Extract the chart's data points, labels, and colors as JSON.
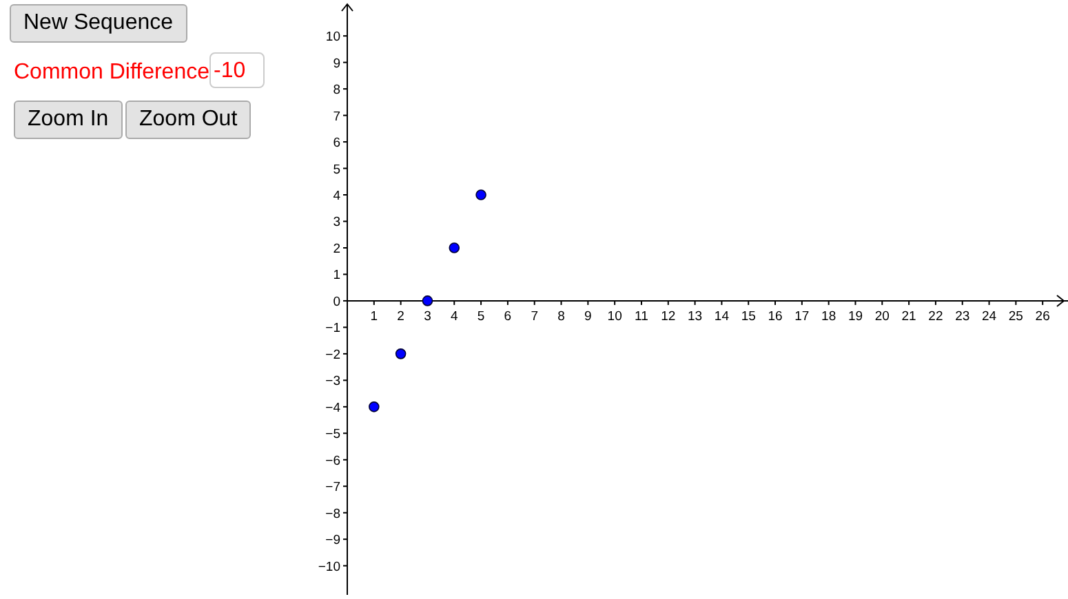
{
  "chart_data": {
    "type": "scatter",
    "x": [
      1,
      2,
      3,
      4,
      5
    ],
    "series": [
      {
        "color": "#0000ff",
        "values": [
          -4,
          -2,
          0,
          2,
          4
        ]
      }
    ],
    "marker": "circle",
    "grid": false,
    "xlim": [
      0,
      27
    ],
    "xticks": [
      1,
      2,
      3,
      4,
      5,
      6,
      7,
      8,
      9,
      10,
      11,
      12,
      13,
      14,
      15,
      16,
      17,
      18,
      19,
      20,
      21,
      22,
      23,
      24,
      25,
      26
    ],
    "ylim": [
      -11.1,
      11.2
    ],
    "yticks": [
      {
        "value": -10,
        "label": "−10"
      },
      {
        "value": -9,
        "label": "−9"
      },
      {
        "value": -8,
        "label": "−8"
      },
      {
        "value": -7,
        "label": "−7"
      },
      {
        "value": -6,
        "label": "−6"
      },
      {
        "value": -5,
        "label": "−5"
      },
      {
        "value": -4,
        "label": "−4"
      },
      {
        "value": -3,
        "label": "−3"
      },
      {
        "value": -2,
        "label": "−2"
      },
      {
        "value": -1,
        "label": "−1"
      },
      0,
      1,
      2,
      3,
      4,
      5,
      6,
      7,
      8,
      9,
      10
    ],
    "annotations": [
      "New Sequence",
      "Common Difference",
      "-10",
      "Zoom In",
      "Zoom Out"
    ]
  }
}
